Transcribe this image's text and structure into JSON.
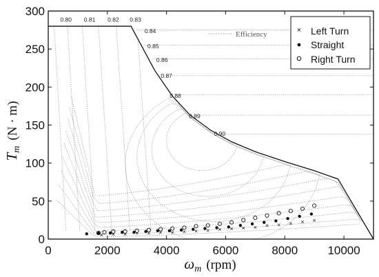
{
  "chart_data": {
    "type": "scatter",
    "xlabel_symbol": "ω",
    "xlabel_sub": "m",
    "xlabel_unit": "(rpm)",
    "ylabel_symbol": "T",
    "ylabel_sub": "m",
    "ylabel_unit": "(N · m)",
    "xlim": [
      0,
      11000
    ],
    "ylim": [
      0,
      300
    ],
    "xticks": [
      0,
      2000,
      4000,
      6000,
      8000,
      10000
    ],
    "yticks": [
      0,
      50,
      100,
      150,
      200,
      250,
      300
    ],
    "legend_position": "top-right",
    "annotation": "Efficiency",
    "max_torque_curve": {
      "x": [
        0,
        2800,
        3600,
        4200,
        4800,
        5500,
        6200,
        7000,
        8000,
        9000,
        9800,
        11000
      ],
      "y": [
        280,
        280,
        222,
        188,
        163,
        143,
        128,
        115,
        102,
        90,
        79,
        0
      ]
    },
    "efficiency_labels": [
      {
        "label": "0.80",
        "x": 600,
        "y": 286
      },
      {
        "label": "0.81",
        "x": 1400,
        "y": 286
      },
      {
        "label": "0.82",
        "x": 2200,
        "y": 286
      },
      {
        "label": "0.83",
        "x": 2950,
        "y": 286
      },
      {
        "label": "0.84",
        "x": 3450,
        "y": 271
      },
      {
        "label": "0.85",
        "x": 3550,
        "y": 251
      },
      {
        "label": "0.86",
        "x": 3850,
        "y": 233
      },
      {
        "label": "0.87",
        "x": 4000,
        "y": 212
      },
      {
        "label": "0.88",
        "x": 4300,
        "y": 186
      },
      {
        "label": "0.89",
        "x": 4950,
        "y": 159
      },
      {
        "label": "0.90",
        "x": 5800,
        "y": 136
      }
    ],
    "series": [
      {
        "name": "Left Turn",
        "marker": "x",
        "x": [
          1800,
          2200,
          2600,
          3000,
          3400,
          3800,
          4200,
          4600,
          5000,
          5400,
          5800,
          6200,
          6600,
          7000,
          7400,
          7800,
          8200,
          8600,
          9000
        ],
        "y": [
          6,
          7,
          7,
          8,
          8,
          9,
          9,
          10,
          11,
          12,
          13,
          14,
          15,
          16,
          18,
          19,
          21,
          23,
          25
        ]
      },
      {
        "name": "Straight",
        "marker": "dot",
        "x": [
          1300,
          1700,
          2100,
          2500,
          2900,
          3300,
          3700,
          4100,
          4500,
          4900,
          5300,
          5700,
          6100,
          6500,
          6900,
          7300,
          7700,
          8100,
          8500,
          8900
        ],
        "y": [
          7,
          8,
          8,
          9,
          9,
          10,
          11,
          11,
          12,
          13,
          14,
          15,
          16,
          18,
          20,
          22,
          24,
          27,
          30,
          33
        ]
      },
      {
        "name": "Right Turn",
        "marker": "circle",
        "x": [
          1700,
          1900,
          2200,
          2600,
          3000,
          3400,
          3800,
          4200,
          4600,
          5000,
          5400,
          5800,
          6200,
          6600,
          7000,
          7400,
          7800,
          8200,
          8600,
          9000
        ],
        "y": [
          8,
          9,
          10,
          10,
          11,
          12,
          13,
          14,
          15,
          17,
          18,
          20,
          22,
          25,
          28,
          31,
          34,
          37,
          40,
          44
        ]
      }
    ]
  }
}
